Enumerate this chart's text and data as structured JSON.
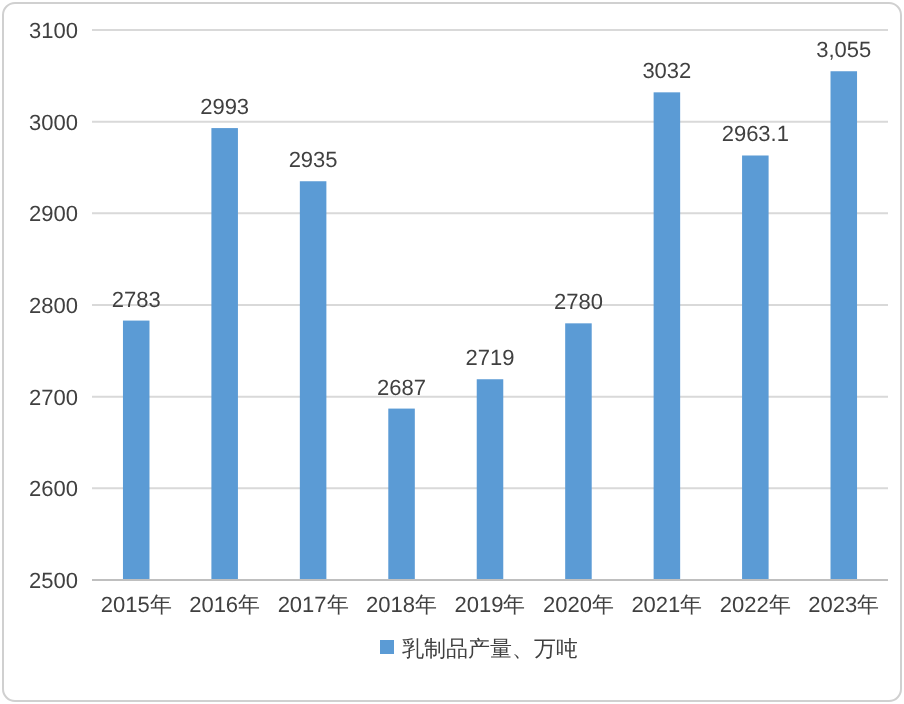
{
  "chart_data": {
    "type": "bar",
    "categories": [
      "2015年",
      "2016年",
      "2017年",
      "2018年",
      "2019年",
      "2020年",
      "2021年",
      "2022年",
      "2023年"
    ],
    "series": [
      {
        "name": "乳制品产量、万吨",
        "color": "#5b9bd5",
        "values": [
          2783,
          2993,
          2935,
          2687,
          2719,
          2780,
          3032,
          2963.1,
          3055
        ],
        "value_labels": [
          "2783",
          "2993",
          "2935",
          "2687",
          "2719",
          "2780",
          "3032",
          "2963.1",
          "3,055"
        ]
      }
    ],
    "ylim": [
      2500,
      3100
    ],
    "yticks": [
      2500,
      2600,
      2700,
      2800,
      2900,
      3000,
      3100
    ],
    "grid": "y",
    "legend": "bottom"
  }
}
